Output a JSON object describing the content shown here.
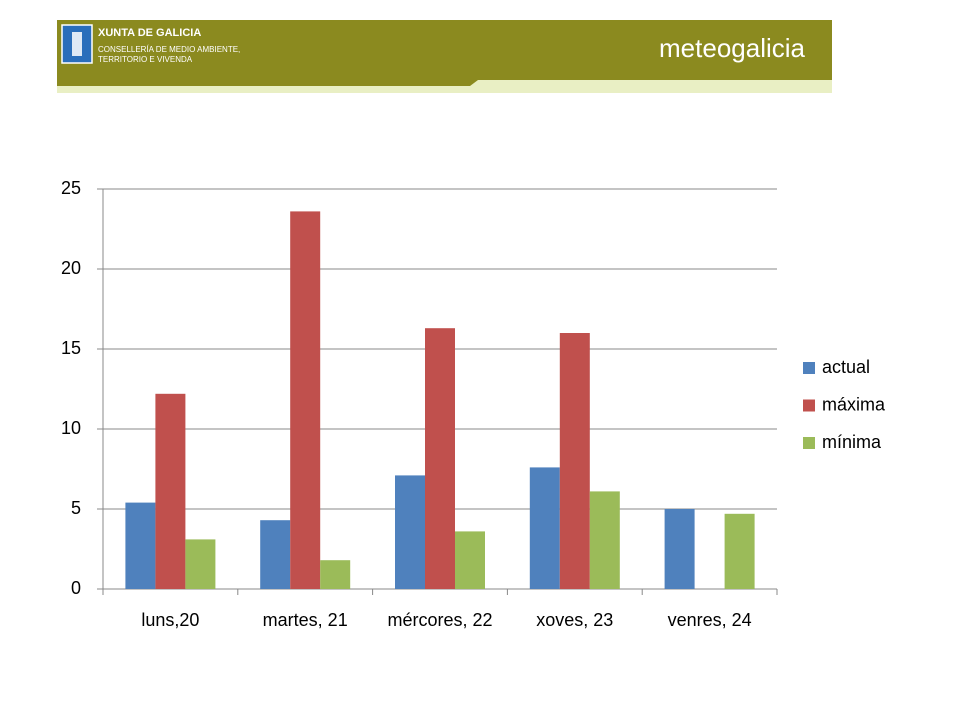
{
  "header": {
    "org": "XUNTA DE GALICIA",
    "dept_line1": "CONSELLERÍA DE MEDIO AMBIENTE,",
    "dept_line2": "TERRITORIO E VIVENDA",
    "brand": "meteogalicia"
  },
  "chart_data": {
    "type": "bar",
    "categories": [
      "luns,20",
      "martes, 21",
      "mércores, 22",
      "xoves, 23",
      "venres, 24"
    ],
    "series": [
      {
        "name": "actual",
        "color": "#4f81bd",
        "values": [
          5.4,
          4.3,
          7.1,
          7.6,
          5.0
        ]
      },
      {
        "name": "máxima",
        "color": "#c0504d",
        "values": [
          12.2,
          23.6,
          16.3,
          16.0,
          null
        ]
      },
      {
        "name": "mínima",
        "color": "#9bbb59",
        "values": [
          3.1,
          1.8,
          3.6,
          6.1,
          4.7
        ]
      }
    ],
    "ylim": [
      0,
      25
    ],
    "yticks": [
      0,
      5,
      10,
      15,
      20,
      25
    ],
    "grid": true,
    "legend": "right"
  }
}
